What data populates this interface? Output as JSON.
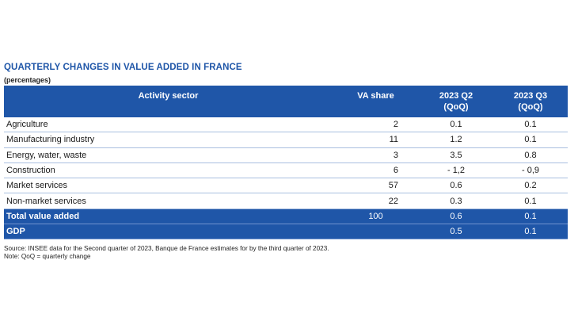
{
  "title": "QUARTERLY CHANGES IN VALUE ADDED IN FRANCE",
  "subtitle": "(percentages)",
  "colors": {
    "header_blue": "#1f56a8",
    "title_blue": "#1f56a8",
    "row_divider": "#a9bfe0"
  },
  "table": {
    "headers": {
      "sector": "Activity sector",
      "share": "VA share",
      "q2_line1": "2023 Q2",
      "q2_line2": "(QoQ)",
      "q3_line1": "2023 Q3",
      "q3_line2": "(QoQ)"
    },
    "rows": [
      {
        "sector": "Agriculture",
        "share": "2",
        "q2": "0.1",
        "q3": "0.1"
      },
      {
        "sector": "Manufacturing industry",
        "share": "11",
        "q2": "1.2",
        "q3": "0.1"
      },
      {
        "sector": "Energy, water, waste",
        "share": "3",
        "q2": "3.5",
        "q3": "0.8"
      },
      {
        "sector": "Construction",
        "share": "6",
        "q2": "- 1,2",
        "q3": "- 0,9"
      },
      {
        "sector": "Market services",
        "share": "57",
        "q2": "0.6",
        "q3": "0.2"
      },
      {
        "sector": "Non-market services",
        "share": "22",
        "q2": "0.3",
        "q3": "0.1"
      }
    ],
    "total": {
      "sector": "Total value added",
      "share": "100",
      "q2": "0.6",
      "q3": "0.1"
    },
    "gdp": {
      "sector": "GDP",
      "share": "",
      "q2": "0.5",
      "q3": "0.1"
    }
  },
  "source": "Source: INSEE data for the Second quarter of 2023, Banque de France estimates for by the third quarter of 2023.",
  "note": "Note: QoQ = quarterly change"
}
